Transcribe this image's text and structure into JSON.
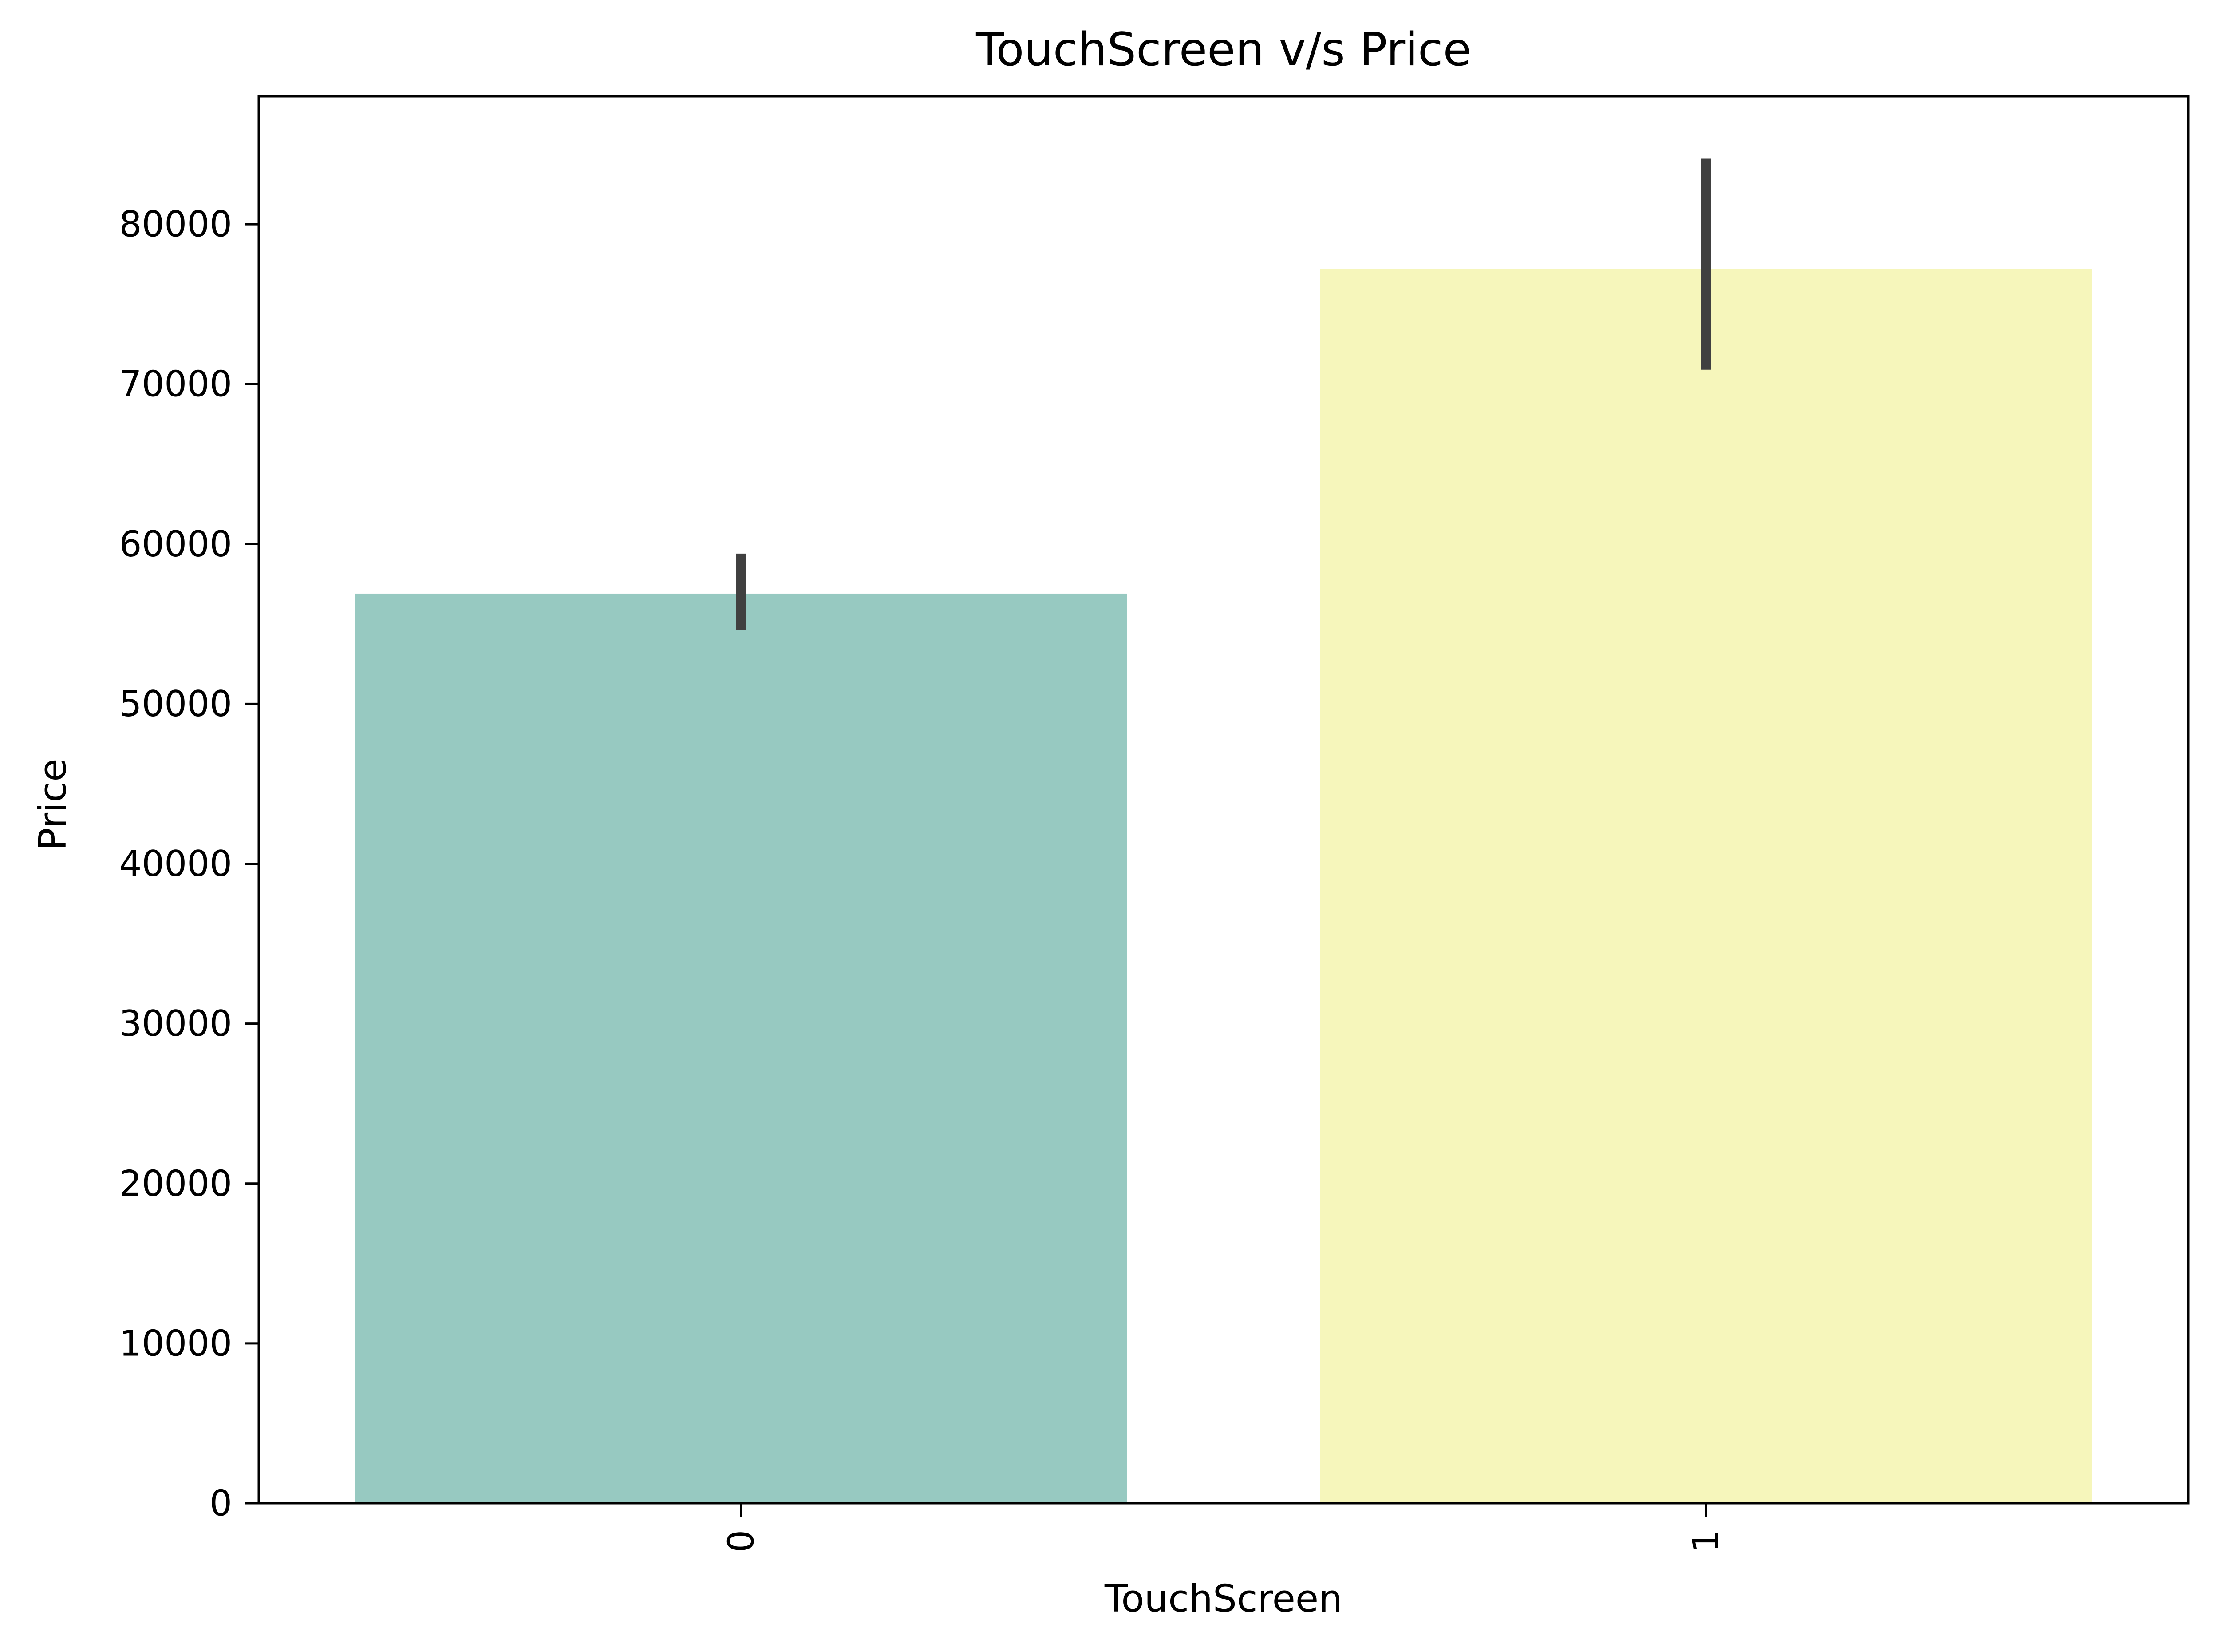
{
  "chart_data": {
    "type": "bar",
    "title": "TouchScreen v/s Price",
    "xlabel": "TouchScreen",
    "ylabel": "Price",
    "categories": [
      "0",
      "1"
    ],
    "values": [
      56900,
      77200
    ],
    "error_bars": [
      {
        "low": 54600,
        "high": 59400
      },
      {
        "low": 70900,
        "high": 84100
      }
    ],
    "colors": [
      "#97c9c1",
      "#f6f6bb"
    ],
    "error_bar_color": "#404040",
    "ylim": [
      0,
      88000
    ],
    "yticks": [
      0,
      10000,
      20000,
      30000,
      40000,
      50000,
      60000,
      70000,
      80000
    ],
    "xtick_rotation": "vertical",
    "grid": false,
    "legend": "none"
  }
}
